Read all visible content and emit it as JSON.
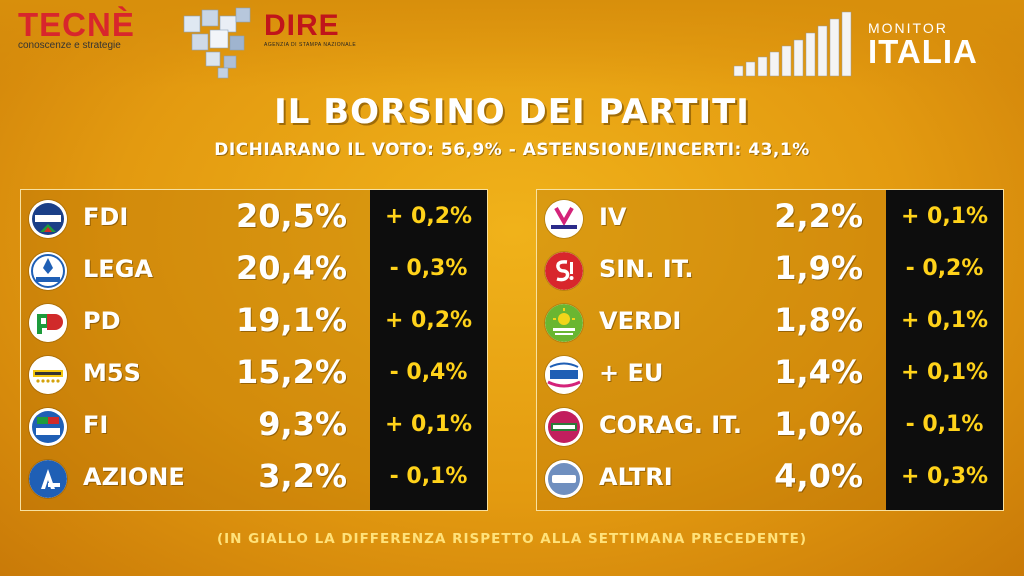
{
  "header": {
    "tecne": {
      "brand": "TECNÈ",
      "sub": "conoscenze e strategie"
    },
    "dire": {
      "brand": "DIRE",
      "sub": "AGENZIA DI STAMPA NAZIONALE"
    },
    "monitor": {
      "line1": "MONITOR",
      "line2": "ITALIA"
    }
  },
  "title": "IL BORSINO DEI PARTITI",
  "subtitle": "DICHIARANO IL VOTO: 56,9% - ASTENSIONE/INCERTI: 43,1%",
  "left_parties": [
    {
      "abbr": "FDI",
      "pct": "20,5%",
      "delta": "+ 0,2%",
      "logo_text": "MELONI"
    },
    {
      "abbr": "LEGA",
      "pct": "20,4%",
      "delta": "- 0,3%",
      "logo_text": "SALVINI"
    },
    {
      "abbr": "PD",
      "pct": "19,1%",
      "delta": "+ 0,2%",
      "logo_text": "PD"
    },
    {
      "abbr": "M5S",
      "pct": "15,2%",
      "delta": "- 0,4%",
      "logo_text": "MOVIMENTO"
    },
    {
      "abbr": "FI",
      "pct": "9,3%",
      "delta": "+ 0,1%",
      "logo_text": "BERLUSCONI"
    },
    {
      "abbr": "AZIONE",
      "pct": "3,2%",
      "delta": "- 0,1%",
      "logo_text": "A"
    }
  ],
  "right_parties": [
    {
      "abbr": "IV",
      "pct": "2,2%",
      "delta": "+ 0,1%",
      "logo_text": "italiaviva"
    },
    {
      "abbr": "SIN. IT.",
      "pct": "1,9%",
      "delta": "- 0,2%",
      "logo_text": "S!"
    },
    {
      "abbr": "VERDI",
      "pct": "1,8%",
      "delta": "+ 0,1%",
      "logo_text": "EUROPA VERDE"
    },
    {
      "abbr": "+ EU",
      "pct": "1,4%",
      "delta": "+ 0,1%",
      "logo_text": "+EUROPA"
    },
    {
      "abbr": "CORAG. IT.",
      "pct": "1,0%",
      "delta": "- 0,1%",
      "logo_text": "CORAGGIO ITALIA"
    },
    {
      "abbr": "ALTRI",
      "pct": "4,0%",
      "delta": "+ 0,3%",
      "logo_text": "ALTRI"
    }
  ],
  "footnote": "(IN GIALLO LA DIFFERENZA RISPETTO ALLA SETTIMANA PRECEDENTE)",
  "colors": {
    "background": "#e8a414",
    "delta_box": "#0d0d0d",
    "delta_text": "#ffd21a",
    "text": "#ffffff"
  }
}
